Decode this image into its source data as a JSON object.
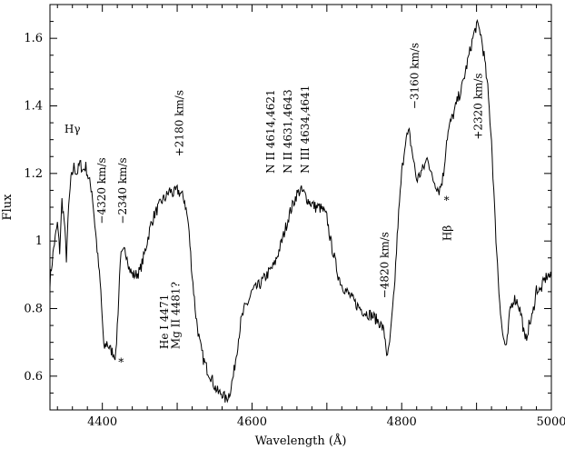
{
  "chart_data": {
    "type": "line",
    "title": "",
    "xlabel": "Wavelength (Å)",
    "ylabel": "Flux",
    "xlim": [
      4330,
      5000
    ],
    "ylim": [
      0.5,
      1.7
    ],
    "x_ticks": [
      4400,
      4600,
      4800,
      5000
    ],
    "x_tick_labels": [
      "4400",
      "4600",
      "4800",
      "5000"
    ],
    "y_ticks": [
      0.6,
      0.8,
      1.0,
      1.2,
      1.4,
      1.6
    ],
    "y_tick_labels": [
      "0.6",
      "0.8",
      "1",
      "1.2",
      "1.4",
      "1.6"
    ],
    "grid": false,
    "series": [
      {
        "x": [
          4330,
          4335,
          4340,
          4343,
          4346,
          4349,
          4352,
          4355,
          4358,
          4362,
          4366,
          4370,
          4374,
          4378,
          4382,
          4386,
          4390,
          4394,
          4398,
          4402,
          4406,
          4410,
          4414,
          4418,
          4422,
          4424,
          4427,
          4430,
          4433,
          4436,
          4440,
          4445,
          4450,
          4455,
          4460,
          4465,
          4470,
          4475,
          4480,
          4485,
          4490,
          4495,
          4500,
          4505,
          4510,
          4515,
          4520,
          4525,
          4530,
          4535,
          4540,
          4545,
          4550,
          4555,
          4560,
          4565,
          4570,
          4575,
          4580,
          4585,
          4590,
          4595,
          4600,
          4610,
          4620,
          4630,
          4640,
          4650,
          4660,
          4665,
          4670,
          4675,
          4680,
          4685,
          4690,
          4695,
          4700,
          4705,
          4710,
          4715,
          4720,
          4730,
          4740,
          4750,
          4760,
          4770,
          4775,
          4778,
          4781,
          4785,
          4790,
          4795,
          4800,
          4805,
          4810,
          4815,
          4820,
          4825,
          4830,
          4835,
          4840,
          4845,
          4850,
          4853,
          4856,
          4860,
          4865,
          4870,
          4875,
          4880,
          4885,
          4890,
          4895,
          4900,
          4905,
          4910,
          4915,
          4920,
          4925,
          4930,
          4935,
          4940,
          4945,
          4950,
          4955,
          4960,
          4965,
          4970,
          4975,
          4980,
          4985,
          4990,
          4995,
          5000
        ],
        "y": [
          0.88,
          0.98,
          1.05,
          0.97,
          1.12,
          1.06,
          0.95,
          1.1,
          1.18,
          1.22,
          1.2,
          1.23,
          1.21,
          1.22,
          1.18,
          1.15,
          1.05,
          0.95,
          0.85,
          0.68,
          0.7,
          0.68,
          0.67,
          0.66,
          0.84,
          0.95,
          0.96,
          0.97,
          0.96,
          0.92,
          0.9,
          0.9,
          0.91,
          0.95,
          1.0,
          1.05,
          1.08,
          1.1,
          1.12,
          1.13,
          1.15,
          1.14,
          1.15,
          1.14,
          1.12,
          1.05,
          0.9,
          0.78,
          0.7,
          0.65,
          0.62,
          0.6,
          0.57,
          0.55,
          0.55,
          0.53,
          0.55,
          0.6,
          0.68,
          0.76,
          0.8,
          0.82,
          0.85,
          0.87,
          0.9,
          0.93,
          1.0,
          1.08,
          1.14,
          1.15,
          1.14,
          1.12,
          1.11,
          1.1,
          1.1,
          1.09,
          1.07,
          1.0,
          0.95,
          0.9,
          0.87,
          0.84,
          0.81,
          0.79,
          0.78,
          0.76,
          0.74,
          0.71,
          0.65,
          0.72,
          0.85,
          1.05,
          1.2,
          1.3,
          1.32,
          1.25,
          1.18,
          1.2,
          1.22,
          1.25,
          1.19,
          1.17,
          1.15,
          1.17,
          1.2,
          1.3,
          1.35,
          1.38,
          1.42,
          1.45,
          1.5,
          1.55,
          1.6,
          1.64,
          1.62,
          1.55,
          1.45,
          1.3,
          1.05,
          0.85,
          0.72,
          0.68,
          0.8,
          0.83,
          0.82,
          0.78,
          0.7,
          0.75,
          0.78,
          0.86,
          0.85,
          0.88,
          0.9,
          0.89
        ]
      }
    ],
    "annotations": [
      {
        "text": "Hγ",
        "x": 4360,
        "y": 1.32,
        "rotated": false
      },
      {
        "text": "−4320 km/s",
        "x": 4404,
        "y": 1.05,
        "rotated": true
      },
      {
        "text": "−2340 km/s",
        "x": 4432,
        "y": 1.05,
        "rotated": true
      },
      {
        "text": "*",
        "x": 4425,
        "y": 0.63,
        "rotated": false
      },
      {
        "text": "+2180 km/s",
        "x": 4508,
        "y": 1.25,
        "rotated": true
      },
      {
        "text": "He I 4471",
        "x": 4488,
        "y": 0.68,
        "rotated": true
      },
      {
        "text": "Mg II 4481?",
        "x": 4503,
        "y": 0.68,
        "rotated": true
      },
      {
        "text": "N II 4614,4621",
        "x": 4630,
        "y": 1.2,
        "rotated": true
      },
      {
        "text": "N II 4631,4643",
        "x": 4653,
        "y": 1.2,
        "rotated": true
      },
      {
        "text": "N III 4634,4641",
        "x": 4676,
        "y": 1.2,
        "rotated": true
      },
      {
        "text": "−4820 km/s",
        "x": 4782,
        "y": 0.83,
        "rotated": true
      },
      {
        "text": "−3160 km/s",
        "x": 4822,
        "y": 1.39,
        "rotated": true
      },
      {
        "text": "*",
        "x": 4860,
        "y": 1.11,
        "rotated": false
      },
      {
        "text": "Hβ",
        "x": 4866,
        "y": 1.0,
        "rotated": true
      },
      {
        "text": "+2320 km/s",
        "x": 4907,
        "y": 1.3,
        "rotated": true
      }
    ]
  }
}
